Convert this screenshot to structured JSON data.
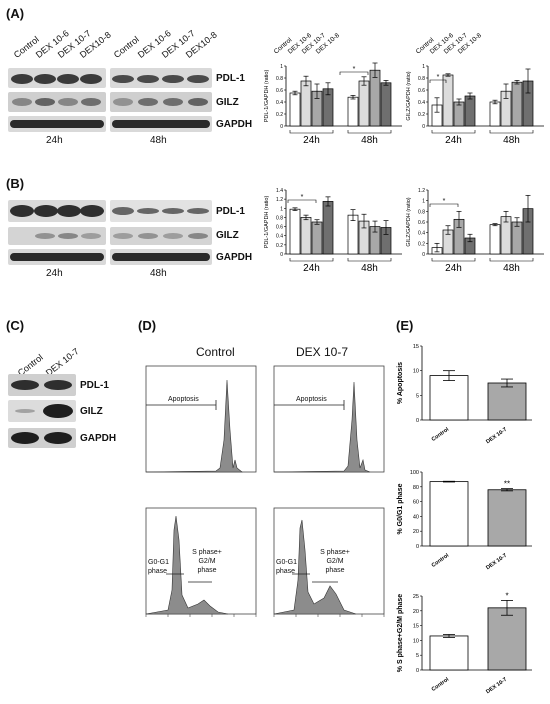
{
  "panels": {
    "A": "(A)",
    "B": "(B)",
    "C": "(C)",
    "D": "(D)",
    "E": "(E)"
  },
  "lanes_A_24h": [
    "Control",
    "DEX 10-6",
    "DEX 10-7",
    "DEX10-8"
  ],
  "lanes_A_48h": [
    "Control",
    "DEX 10-6",
    "DEX 10-7",
    "DEX10-8"
  ],
  "lanes_C": [
    "Control",
    "DEX 10-7"
  ],
  "blot_labels": {
    "pdl1": "PDL-1",
    "gilz": "GILZ",
    "gapdh": "GAPDH"
  },
  "times": {
    "t24": "24h",
    "t48": "48h"
  },
  "axis_labels": {
    "pdl1_ratio": "PDL-1/GAPDH (ratio)",
    "gilz_ratio": "GILZ/GAPDH (ratio)",
    "apoptosis": "% Apoptosis",
    "g0g1": "% G0/G1 phase",
    "sg2m": "% S phase+G2/M phase"
  },
  "flow": {
    "control_title": "Control",
    "dex_title": "DEX 10-7",
    "apoptosis": "Apoptosis",
    "g0g1": "G0-G1 phase",
    "sg2m": "S phase+ G2/M phase"
  },
  "chart_data": [
    {
      "type": "bar",
      "panel": "A",
      "ylabel": "PDL-1/GAPDH (ratio)",
      "ylim": [
        0,
        1.0
      ],
      "ticks": [
        0,
        0.2,
        0.4,
        0.6,
        0.8,
        1.0
      ],
      "groups": [
        "24h",
        "48h"
      ],
      "legend": [
        "Control",
        "DEX 10-6",
        "DEX 10-7",
        "DEX 10-8"
      ],
      "values": [
        [
          0.55,
          0.75,
          0.58,
          0.62
        ],
        [
          0.48,
          0.75,
          0.93,
          0.72
        ]
      ],
      "errors": [
        [
          0.03,
          0.08,
          0.12,
          0.1
        ],
        [
          0.03,
          0.07,
          0.12,
          0.04
        ]
      ],
      "colors": [
        "#ffffff",
        "#dcdcdc",
        "#a8a8a8",
        "#6f6f6f"
      ],
      "sig": "*"
    },
    {
      "type": "bar",
      "panel": "A",
      "ylabel": "GILZ/GAPDH (ratio)",
      "ylim": [
        0,
        1.0
      ],
      "ticks": [
        0,
        0.2,
        0.4,
        0.6,
        0.8,
        1.0
      ],
      "groups": [
        "24h",
        "48h"
      ],
      "legend": [
        "Control",
        "DEX 10-6",
        "DEX 10-7",
        "DEX 10-8"
      ],
      "values": [
        [
          0.35,
          0.85,
          0.4,
          0.5
        ],
        [
          0.4,
          0.58,
          0.73,
          0.75
        ]
      ],
      "errors": [
        [
          0.12,
          0.02,
          0.05,
          0.05
        ],
        [
          0.03,
          0.12,
          0.03,
          0.2
        ]
      ],
      "colors": [
        "#ffffff",
        "#dcdcdc",
        "#a8a8a8",
        "#6f6f6f"
      ],
      "sig": "*"
    },
    {
      "type": "bar",
      "panel": "B",
      "ylabel": "PDL-1/GAPDH (ratio)",
      "ylim": [
        0,
        1.4
      ],
      "ticks": [
        0,
        0.2,
        0.4,
        0.6,
        0.8,
        1.0,
        1.2,
        1.4
      ],
      "groups": [
        "24h",
        "48h"
      ],
      "values": [
        [
          0.98,
          0.8,
          0.7,
          1.15
        ],
        [
          0.85,
          0.72,
          0.6,
          0.58
        ]
      ],
      "errors": [
        [
          0.03,
          0.05,
          0.05,
          0.1
        ],
        [
          0.12,
          0.15,
          0.12,
          0.15
        ]
      ],
      "colors": [
        "#ffffff",
        "#dcdcdc",
        "#a8a8a8",
        "#6f6f6f"
      ],
      "sig": "*"
    },
    {
      "type": "bar",
      "panel": "B",
      "ylabel": "GILZ/GAPDH (ratio)",
      "ylim": [
        0,
        1.2
      ],
      "ticks": [
        0,
        0.2,
        0.4,
        0.6,
        0.8,
        1.0,
        1.2
      ],
      "groups": [
        "24h",
        "48h"
      ],
      "values": [
        [
          0.12,
          0.45,
          0.65,
          0.3
        ],
        [
          0.55,
          0.7,
          0.6,
          0.85
        ]
      ],
      "errors": [
        [
          0.08,
          0.08,
          0.15,
          0.07
        ],
        [
          0.02,
          0.1,
          0.08,
          0.25
        ]
      ],
      "colors": [
        "#ffffff",
        "#dcdcdc",
        "#a8a8a8",
        "#6f6f6f"
      ],
      "sig": "*"
    },
    {
      "type": "bar",
      "panel": "E",
      "ylabel": "% Apoptosis",
      "ylim": [
        0,
        15
      ],
      "ticks": [
        0,
        5,
        10,
        15
      ],
      "categories": [
        "Control",
        "DEX 10-7"
      ],
      "values": [
        9,
        7.5
      ],
      "errors": [
        1,
        0.8
      ]
    },
    {
      "type": "bar",
      "panel": "E",
      "ylabel": "% G0/G1 phase",
      "ylim": [
        0,
        100
      ],
      "ticks": [
        0,
        20,
        40,
        60,
        80,
        100
      ],
      "categories": [
        "Control",
        "DEX 10-7"
      ],
      "values": [
        87,
        76
      ],
      "errors": [
        0.5,
        1.5
      ],
      "sig": "**"
    },
    {
      "type": "bar",
      "panel": "E",
      "ylabel": "% S phase+G2/M phase",
      "ylim": [
        0,
        25
      ],
      "ticks": [
        0,
        5,
        10,
        15,
        20,
        25
      ],
      "categories": [
        "Control",
        "DEX 10-7"
      ],
      "values": [
        11.5,
        21
      ],
      "errors": [
        0.5,
        2.5
      ],
      "sig": "*"
    }
  ]
}
